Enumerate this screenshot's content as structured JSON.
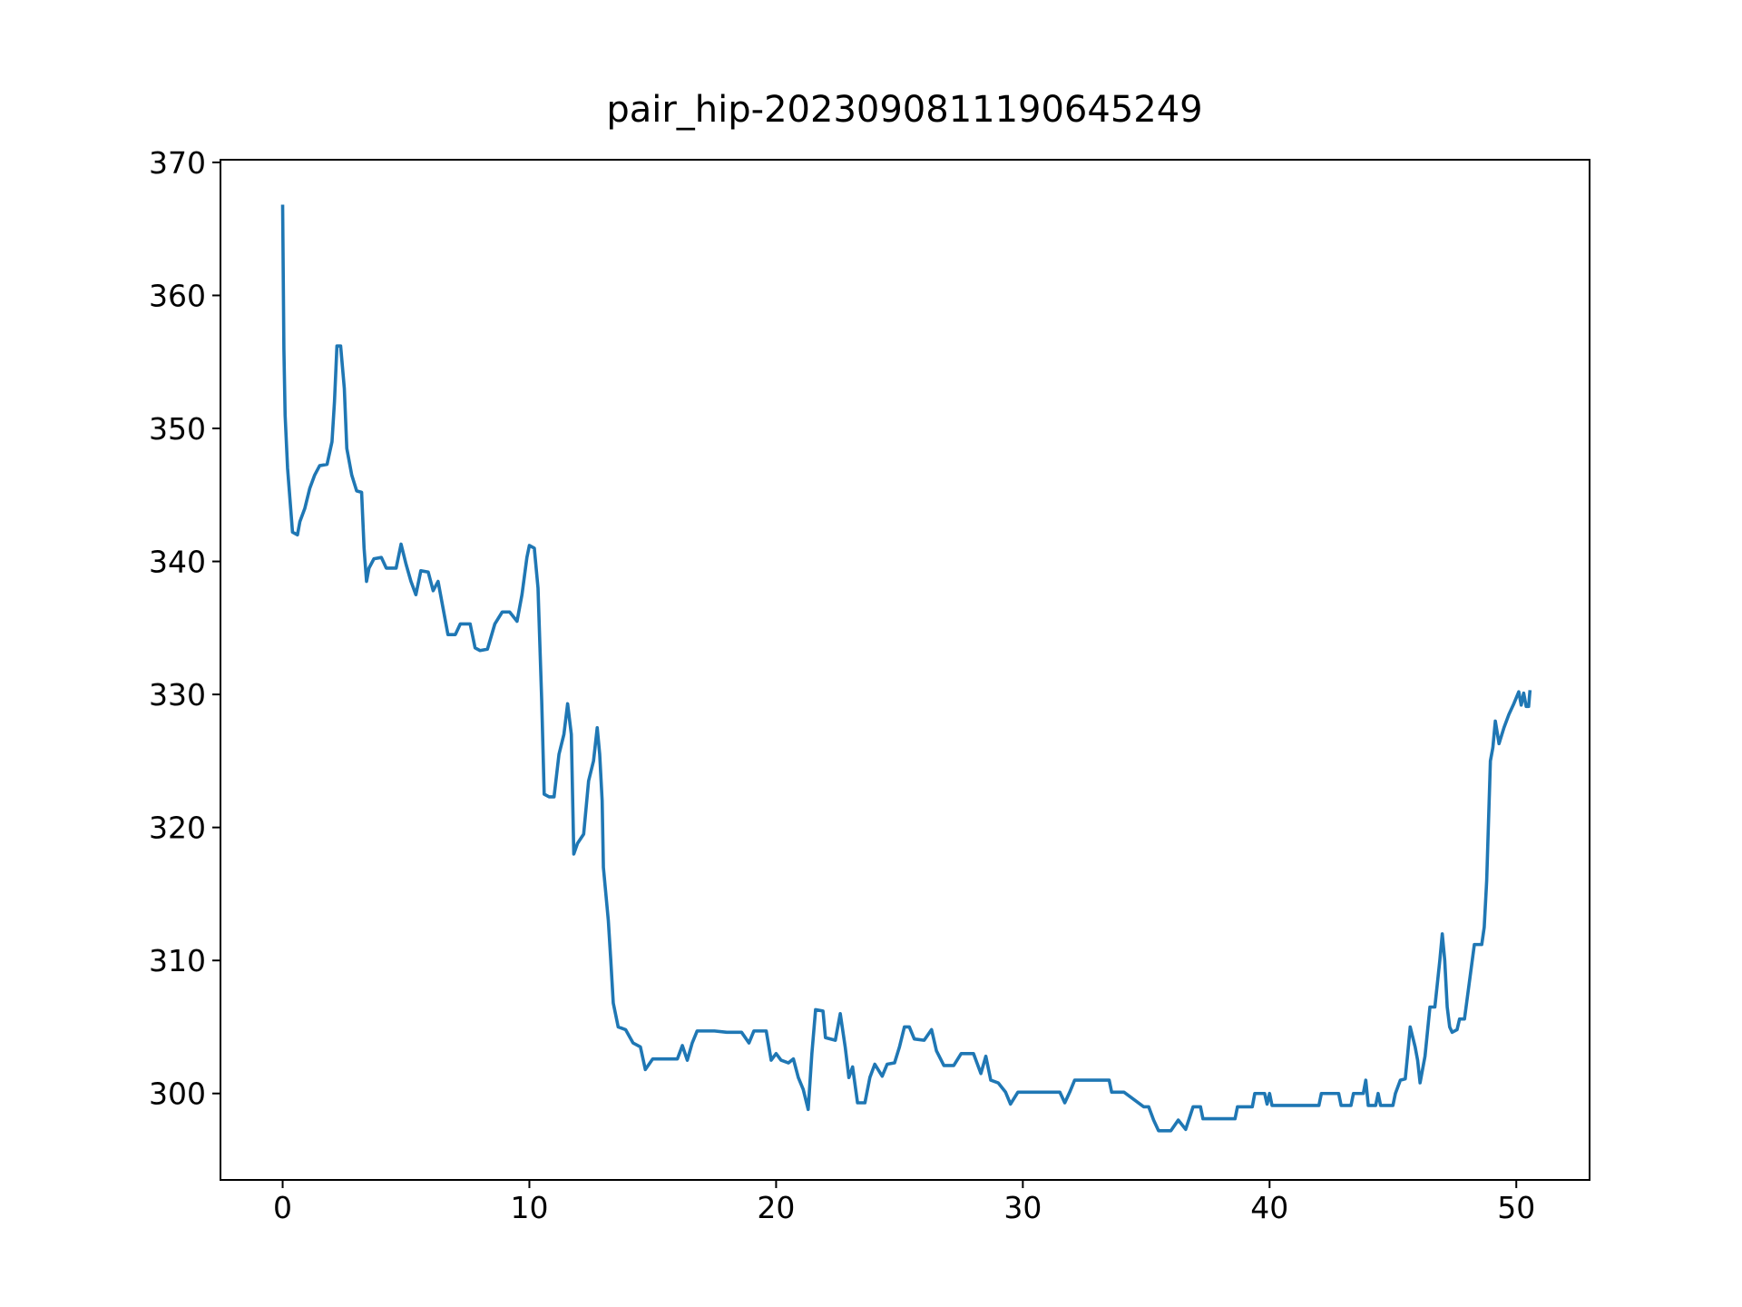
{
  "chart_data": {
    "type": "line",
    "title": "pair_hip-20230908111906452​49",
    "color": "#1f77b4",
    "xlim": [
      -2.52,
      52.97
    ],
    "ylim": [
      293.5,
      370.2
    ],
    "xticks": [
      0,
      10,
      20,
      30,
      40,
      50
    ],
    "yticks": [
      300,
      310,
      320,
      330,
      340,
      350,
      360,
      370
    ],
    "x": [
      0,
      0.05,
      0.1,
      0.2,
      0.4,
      0.6,
      0.7,
      0.9,
      1.1,
      1.3,
      1.5,
      1.8,
      2.0,
      2.1,
      2.2,
      2.35,
      2.5,
      2.6,
      2.8,
      3.0,
      3.2,
      3.3,
      3.4,
      3.5,
      3.7,
      4.0,
      4.2,
      4.6,
      4.8,
      5.0,
      5.2,
      5.4,
      5.6,
      5.9,
      6.1,
      6.3,
      6.5,
      6.7,
      7.0,
      7.2,
      7.6,
      7.8,
      8.0,
      8.3,
      8.6,
      8.9,
      9.2,
      9.5,
      9.7,
      9.9,
      10.0,
      10.2,
      10.35,
      10.5,
      10.6,
      10.8,
      11.0,
      11.2,
      11.4,
      11.55,
      11.7,
      11.8,
      11.95,
      12.2,
      12.4,
      12.6,
      12.75,
      12.85,
      12.95,
      13.0,
      13.2,
      13.3,
      13.4,
      13.6,
      13.9,
      14.2,
      14.5,
      14.7,
      15.0,
      15.5,
      16.0,
      16.2,
      16.4,
      16.6,
      16.8,
      17.5,
      18.0,
      18.6,
      18.9,
      19.1,
      19.6,
      19.8,
      20.0,
      20.2,
      20.5,
      20.7,
      20.9,
      21.1,
      21.3,
      21.45,
      21.6,
      21.9,
      22.0,
      22.4,
      22.6,
      22.8,
      22.95,
      23.1,
      23.3,
      23.6,
      23.8,
      24.0,
      24.3,
      24.5,
      24.8,
      25.0,
      25.2,
      25.4,
      25.6,
      26.0,
      26.3,
      26.5,
      26.8,
      27.2,
      27.5,
      28.0,
      28.3,
      28.5,
      28.7,
      29.0,
      29.3,
      29.5,
      29.8,
      30.5,
      31.0,
      31.5,
      31.7,
      31.9,
      32.1,
      33.0,
      33.5,
      33.6,
      34.1,
      34.9,
      35.1,
      35.3,
      35.5,
      36.0,
      36.3,
      36.6,
      36.9,
      37.2,
      37.3,
      38.6,
      38.7,
      39.3,
      39.4,
      39.8,
      39.9,
      40.0,
      40.1,
      42.0,
      42.1,
      42.8,
      42.9,
      43.3,
      43.4,
      43.8,
      43.9,
      44.0,
      44.3,
      44.4,
      44.5,
      45.0,
      45.1,
      45.3,
      45.5,
      45.6,
      45.7,
      45.9,
      46.0,
      46.1,
      46.3,
      46.5,
      46.7,
      46.9,
      47.0,
      47.1,
      47.2,
      47.3,
      47.4,
      47.6,
      47.7,
      47.9,
      48.3,
      48.6,
      48.7,
      48.8,
      48.95,
      49.05,
      49.15,
      49.3,
      49.5,
      49.7,
      49.9,
      50.1,
      50.2,
      50.3,
      50.4,
      50.5,
      50.55
    ],
    "values": [
      366.7,
      356,
      351,
      347,
      342.2,
      342,
      343,
      344,
      345.5,
      346.5,
      347.2,
      347.3,
      349,
      352,
      356.2,
      356.2,
      353,
      348.5,
      346.5,
      345.3,
      345.2,
      341,
      338.5,
      339.5,
      340.2,
      340.3,
      339.5,
      339.5,
      341.3,
      339.8,
      338.5,
      337.5,
      339.3,
      339.2,
      337.8,
      338.5,
      336.5,
      334.5,
      334.5,
      335.3,
      335.3,
      333.5,
      333.3,
      333.4,
      335.3,
      336.2,
      336.2,
      335.5,
      337.5,
      340.3,
      341.2,
      341,
      338,
      329.5,
      322.5,
      322.3,
      322.3,
      325.5,
      327,
      329.3,
      327,
      318,
      318.8,
      319.5,
      323.5,
      325,
      327.5,
      325.5,
      322,
      317,
      313,
      310,
      306.8,
      305,
      304.8,
      303.8,
      303.5,
      301.8,
      302.6,
      302.6,
      302.6,
      303.6,
      302.5,
      303.8,
      304.7,
      304.7,
      304.6,
      304.6,
      303.8,
      304.7,
      304.7,
      302.5,
      303,
      302.5,
      302.3,
      302.6,
      301.2,
      300.3,
      298.8,
      303,
      306.3,
      306.2,
      304.2,
      304,
      306,
      303.5,
      301.2,
      302,
      299.3,
      299.3,
      301.2,
      302.2,
      301.3,
      302.2,
      302.3,
      303.5,
      305,
      305,
      304.1,
      304,
      304.8,
      303.2,
      302.1,
      302.1,
      303,
      303,
      301.5,
      302.8,
      301,
      300.8,
      300.1,
      299.2,
      300.1,
      300.1,
      300.1,
      300.1,
      299.3,
      300.1,
      301,
      301,
      301,
      300.1,
      300.1,
      299,
      299,
      298,
      297.2,
      297.2,
      298,
      297.3,
      299,
      299,
      298.1,
      298.1,
      299,
      299,
      300,
      300,
      299.2,
      300,
      299.1,
      299.1,
      300,
      300,
      299.1,
      299.1,
      300,
      300,
      301,
      299.1,
      299.1,
      300,
      299.1,
      299.1,
      300,
      301,
      301.1,
      303,
      305,
      303.5,
      302.5,
      300.8,
      302.8,
      306.5,
      306.5,
      310,
      312,
      310,
      306.5,
      305,
      304.6,
      304.8,
      305.6,
      305.6,
      311.2,
      311.2,
      312.5,
      316,
      325,
      326,
      328,
      326.3,
      327.5,
      328.5,
      329.3,
      330.2,
      329.2,
      330.1,
      329.1,
      329.1,
      330.2
    ]
  }
}
